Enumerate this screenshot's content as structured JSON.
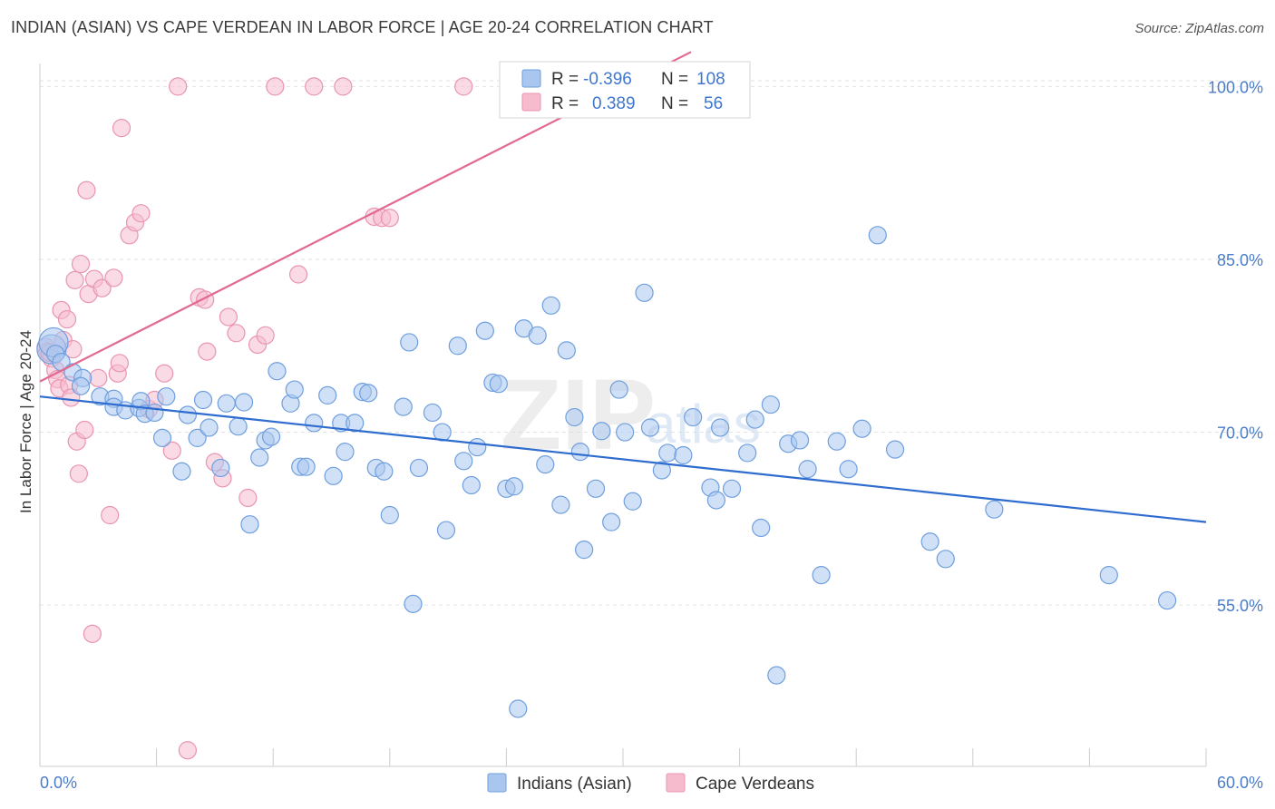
{
  "title": "INDIAN (ASIAN) VS CAPE VERDEAN IN LABOR FORCE | AGE 20-24 CORRELATION CHART",
  "source": "Source: ZipAtlas.com",
  "watermark": {
    "zip": "ZIP",
    "atlas": "atlas"
  },
  "colors": {
    "blue_fill": "#a9c6ef",
    "blue_stroke": "#6f9fde",
    "blue_line": "#2e6ccf",
    "pink_fill": "#f6bccd",
    "pink_stroke": "#e995b1",
    "pink_line": "#e2698f",
    "tick_text": "#4a7cc9",
    "grid": "#e3e3e3"
  },
  "legend": {
    "rows": [
      {
        "r_label": "R =",
        "r_value": "-0.396",
        "n_label": "N =",
        "n_value": "108"
      },
      {
        "r_label": "R =",
        "r_value": "0.389",
        "n_label": "N =",
        "n_value": "56"
      }
    ]
  },
  "chart_data": {
    "type": "scatter",
    "title": "INDIAN (ASIAN) VS CAPE VERDEAN IN LABOR FORCE | AGE 20-24 CORRELATION CHART",
    "xlabel": "",
    "ylabel": "In Labor Force | Age 20-24",
    "xlim": [
      0,
      60
    ],
    "ylim": [
      41,
      102
    ],
    "x_tick_labels": [
      "0.0%",
      "60.0%"
    ],
    "y_ticks": [
      55,
      70,
      85,
      100
    ],
    "y_tick_labels": [
      "55.0%",
      "70.0%",
      "85.0%",
      "100.0%"
    ],
    "grid": true,
    "legend_position": "top-center",
    "series": [
      {
        "name": "Indians (Asian)",
        "r": -0.396,
        "n": 108,
        "trend": {
          "x": [
            0,
            60
          ],
          "y": [
            73.1,
            62.2
          ]
        },
        "points": [
          [
            0.6,
            77.2
          ],
          [
            0.7,
            77.8
          ],
          [
            0.8,
            76.8
          ],
          [
            1.1,
            76.1
          ],
          [
            1.7,
            75.2
          ],
          [
            2.2,
            74.7
          ],
          [
            2.1,
            74.0
          ],
          [
            3.1,
            73.1
          ],
          [
            3.8,
            72.9
          ],
          [
            3.8,
            72.2
          ],
          [
            4.4,
            71.9
          ],
          [
            5.1,
            72.1
          ],
          [
            5.2,
            72.7
          ],
          [
            5.4,
            71.6
          ],
          [
            5.9,
            71.7
          ],
          [
            6.3,
            69.5
          ],
          [
            6.5,
            73.1
          ],
          [
            7.3,
            66.6
          ],
          [
            7.6,
            71.5
          ],
          [
            8.1,
            69.5
          ],
          [
            8.4,
            72.8
          ],
          [
            8.7,
            70.4
          ],
          [
            9.3,
            66.9
          ],
          [
            9.6,
            72.5
          ],
          [
            10.2,
            70.5
          ],
          [
            10.5,
            72.6
          ],
          [
            10.8,
            62.0
          ],
          [
            11.3,
            67.8
          ],
          [
            11.6,
            69.3
          ],
          [
            11.9,
            69.6
          ],
          [
            12.2,
            75.3
          ],
          [
            12.9,
            72.5
          ],
          [
            13.1,
            73.7
          ],
          [
            13.4,
            67.0
          ],
          [
            13.7,
            67.0
          ],
          [
            14.1,
            70.8
          ],
          [
            14.8,
            73.2
          ],
          [
            15.1,
            66.2
          ],
          [
            15.5,
            70.8
          ],
          [
            15.7,
            68.3
          ],
          [
            16.2,
            70.8
          ],
          [
            16.6,
            73.5
          ],
          [
            16.9,
            73.4
          ],
          [
            17.3,
            66.9
          ],
          [
            17.7,
            66.6
          ],
          [
            18.0,
            62.8
          ],
          [
            18.7,
            72.2
          ],
          [
            19.0,
            77.8
          ],
          [
            19.2,
            55.1
          ],
          [
            19.5,
            66.9
          ],
          [
            20.2,
            71.7
          ],
          [
            20.7,
            70.0
          ],
          [
            20.9,
            61.5
          ],
          [
            21.5,
            77.5
          ],
          [
            21.8,
            67.5
          ],
          [
            22.2,
            65.4
          ],
          [
            22.5,
            68.7
          ],
          [
            22.9,
            78.8
          ],
          [
            23.3,
            74.3
          ],
          [
            23.6,
            74.2
          ],
          [
            24.0,
            65.1
          ],
          [
            24.4,
            65.3
          ],
          [
            24.6,
            46.0
          ],
          [
            24.9,
            79.0
          ],
          [
            25.6,
            78.4
          ],
          [
            26.0,
            67.2
          ],
          [
            26.3,
            81.0
          ],
          [
            26.8,
            63.7
          ],
          [
            27.1,
            77.1
          ],
          [
            27.5,
            71.3
          ],
          [
            27.8,
            68.3
          ],
          [
            28.0,
            59.8
          ],
          [
            28.6,
            65.1
          ],
          [
            28.9,
            70.1
          ],
          [
            29.4,
            62.2
          ],
          [
            29.8,
            73.7
          ],
          [
            30.1,
            70.0
          ],
          [
            30.5,
            64.0
          ],
          [
            31.1,
            82.1
          ],
          [
            31.4,
            70.4
          ],
          [
            32.0,
            66.7
          ],
          [
            32.3,
            68.2
          ],
          [
            33.1,
            68.0
          ],
          [
            33.6,
            71.3
          ],
          [
            34.5,
            65.2
          ],
          [
            34.8,
            64.1
          ],
          [
            35.0,
            70.4
          ],
          [
            35.6,
            65.1
          ],
          [
            36.4,
            68.2
          ],
          [
            36.8,
            71.1
          ],
          [
            37.1,
            61.7
          ],
          [
            37.6,
            72.4
          ],
          [
            37.9,
            48.9
          ],
          [
            38.5,
            69.0
          ],
          [
            39.1,
            69.3
          ],
          [
            39.5,
            66.8
          ],
          [
            40.2,
            57.6
          ],
          [
            41.0,
            69.2
          ],
          [
            41.6,
            66.8
          ],
          [
            42.3,
            70.3
          ],
          [
            43.1,
            87.1
          ],
          [
            44.0,
            68.5
          ],
          [
            45.8,
            60.5
          ],
          [
            46.6,
            59.0
          ],
          [
            49.1,
            63.3
          ],
          [
            55.0,
            57.6
          ],
          [
            58.0,
            55.4
          ]
        ]
      },
      {
        "name": "Cape Verdeans",
        "r": 0.389,
        "n": 56,
        "trend": {
          "x": [
            0,
            33.5
          ],
          "y": [
            74.4,
            103.0
          ]
        },
        "points": [
          [
            0.3,
            77.4
          ],
          [
            0.4,
            77.0
          ],
          [
            0.6,
            76.4
          ],
          [
            0.8,
            75.4
          ],
          [
            0.9,
            74.6
          ],
          [
            1.0,
            73.8
          ],
          [
            1.1,
            80.6
          ],
          [
            1.2,
            78.0
          ],
          [
            1.4,
            79.8
          ],
          [
            1.5,
            74.1
          ],
          [
            1.6,
            73.0
          ],
          [
            1.8,
            83.2
          ],
          [
            1.9,
            69.2
          ],
          [
            2.0,
            66.4
          ],
          [
            2.1,
            84.6
          ],
          [
            2.3,
            70.2
          ],
          [
            2.4,
            91.0
          ],
          [
            2.5,
            82.0
          ],
          [
            2.7,
            52.5
          ],
          [
            2.8,
            83.3
          ],
          [
            3.0,
            74.7
          ],
          [
            3.2,
            82.5
          ],
          [
            3.6,
            62.8
          ],
          [
            3.8,
            83.4
          ],
          [
            4.0,
            75.1
          ],
          [
            4.1,
            76.0
          ],
          [
            4.2,
            96.4
          ],
          [
            4.6,
            87.1
          ],
          [
            4.9,
            88.2
          ],
          [
            5.2,
            89.0
          ],
          [
            5.6,
            72.0
          ],
          [
            5.9,
            72.8
          ],
          [
            6.4,
            75.1
          ],
          [
            6.8,
            68.4
          ],
          [
            7.1,
            100.0
          ],
          [
            8.2,
            81.7
          ],
          [
            8.5,
            81.5
          ],
          [
            8.6,
            77.0
          ],
          [
            9.0,
            67.4
          ],
          [
            9.4,
            66.0
          ],
          [
            9.7,
            80.0
          ],
          [
            10.1,
            78.6
          ],
          [
            10.7,
            64.3
          ],
          [
            11.2,
            77.6
          ],
          [
            11.6,
            78.4
          ],
          [
            12.1,
            100.0
          ],
          [
            13.3,
            83.7
          ],
          [
            14.1,
            100.0
          ],
          [
            15.6,
            100.0
          ],
          [
            17.2,
            88.7
          ],
          [
            17.6,
            88.6
          ],
          [
            18.0,
            88.6
          ],
          [
            21.8,
            100.0
          ],
          [
            7.6,
            42.4
          ],
          [
            1.7,
            77.2
          ],
          [
            0.5,
            76.9
          ]
        ]
      }
    ]
  }
}
